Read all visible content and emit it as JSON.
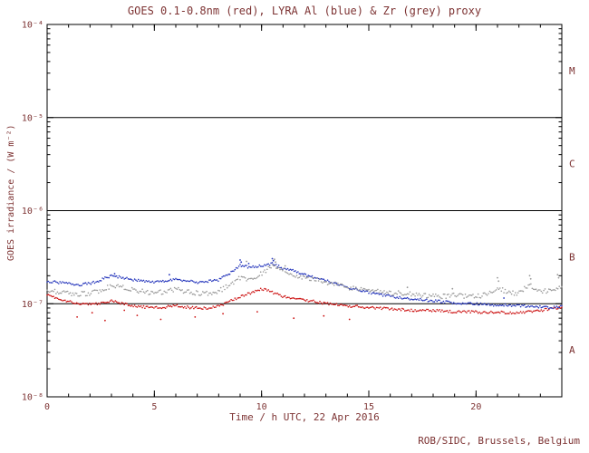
{
  "chart_data": {
    "type": "line",
    "render_style": "dense-dot-series",
    "title": "GOES 0.1-0.8nm (red), LYRA Al (blue) & Zr (grey) proxy",
    "xlabel": "Time / h UTC, 22 Apr 2016",
    "ylabel": "GOES irradiance / (W m⁻²)",
    "credit": "ROB/SIDC, Brussels, Belgium",
    "text_color": "#7d3333",
    "axis_color": "#000000",
    "grid": "flare-class-boundary-lines-only",
    "legend_position": "encoded-in-title",
    "x_range": [
      0,
      24
    ],
    "x_ticks_major": [
      0,
      5,
      10,
      15,
      20
    ],
    "x_minor_step": 1,
    "y_scale": "log",
    "y_range": [
      1e-08,
      0.0001
    ],
    "y_ticks": [
      {
        "value": 0.0001,
        "label": "10⁻⁴"
      },
      {
        "value": 1e-05,
        "label": "10⁻⁵"
      },
      {
        "value": 1e-06,
        "label": "10⁻⁶"
      },
      {
        "value": 1e-07,
        "label": "10⁻⁷"
      },
      {
        "value": 1e-08,
        "label": "10⁻⁸"
      }
    ],
    "class_lines": [
      1e-05,
      1e-06,
      1e-07
    ],
    "class_labels": [
      {
        "label": "M",
        "value": 3.2e-05
      },
      {
        "label": "C",
        "value": 3.2e-06
      },
      {
        "label": "B",
        "value": 3.2e-07
      },
      {
        "label": "A",
        "value": 3.2e-08
      }
    ],
    "x": [
      0,
      0.5,
      1,
      1.5,
      2,
      2.5,
      3,
      3.5,
      4,
      4.5,
      5,
      5.5,
      6,
      6.5,
      7,
      7.5,
      8,
      8.5,
      9,
      9.5,
      10,
      10.5,
      11,
      11.5,
      12,
      12.5,
      13,
      13.5,
      14,
      14.5,
      15,
      15.5,
      16,
      16.5,
      17,
      17.5,
      18,
      18.5,
      19,
      19.5,
      20,
      20.5,
      21,
      21.5,
      22,
      22.5,
      23,
      23.5,
      24
    ],
    "series": [
      {
        "name": "GOES 0.1-0.8nm",
        "color": "#cc1111",
        "jitter_log10": 0.028,
        "values": [
          1.25e-07,
          1.15e-07,
          1.05e-07,
          1e-07,
          9.8e-08,
          1e-07,
          1.07e-07,
          1e-07,
          9.5e-08,
          9.2e-08,
          9e-08,
          9.2e-08,
          9.6e-08,
          9.2e-08,
          9e-08,
          9e-08,
          9.5e-08,
          1.05e-07,
          1.2e-07,
          1.3e-07,
          1.45e-07,
          1.33e-07,
          1.2e-07,
          1.15e-07,
          1.1e-07,
          1.05e-07,
          1e-07,
          9.8e-08,
          9.5e-08,
          9.3e-08,
          9e-08,
          9e-08,
          8.8e-08,
          8.7e-08,
          8.5e-08,
          8.5e-08,
          8.5e-08,
          8.3e-08,
          8.2e-08,
          8.2e-08,
          8.2e-08,
          8e-08,
          8.2e-08,
          8e-08,
          8e-08,
          8.2e-08,
          8.5e-08,
          8.8e-08,
          9.2e-08
        ],
        "extra_points": [
          [
            1.4,
            7.2e-08
          ],
          [
            2.1,
            8e-08
          ],
          [
            2.7,
            6.6e-08
          ],
          [
            3.6,
            8.5e-08
          ],
          [
            4.2,
            7.5e-08
          ],
          [
            5.3,
            6.8e-08
          ],
          [
            6.9,
            7.2e-08
          ],
          [
            8.2,
            7.8e-08
          ],
          [
            9.8,
            8.2e-08
          ],
          [
            11.5,
            7e-08
          ],
          [
            12.9,
            7.4e-08
          ],
          [
            14.1,
            6.8e-08
          ]
        ]
      },
      {
        "name": "LYRA Al proxy",
        "color": "#2233bb",
        "jitter_log10": 0.026,
        "values": [
          1.75e-07,
          1.7e-07,
          1.65e-07,
          1.6e-07,
          1.65e-07,
          1.8e-07,
          2e-07,
          1.92e-07,
          1.8e-07,
          1.75e-07,
          1.7e-07,
          1.76e-07,
          1.82e-07,
          1.76e-07,
          1.7e-07,
          1.74e-07,
          1.8e-07,
          2.1e-07,
          2.6e-07,
          2.45e-07,
          2.55e-07,
          2.7e-07,
          2.4e-07,
          2.25e-07,
          2.05e-07,
          1.9e-07,
          1.78e-07,
          1.62e-07,
          1.5e-07,
          1.42e-07,
          1.32e-07,
          1.26e-07,
          1.2e-07,
          1.16e-07,
          1.12e-07,
          1.1e-07,
          1.07e-07,
          1.05e-07,
          1.02e-07,
          1e-07,
          1e-07,
          9.8e-08,
          9.7e-08,
          9.6e-08,
          9.5e-08,
          9.4e-08,
          9.3e-08,
          9e-08,
          9.5e-08
        ],
        "extra_points": [
          [
            9.0,
            2.95e-07
          ],
          [
            9.05,
            2.8e-07
          ],
          [
            9.4,
            2.7e-07
          ],
          [
            10.5,
            3.05e-07
          ],
          [
            10.55,
            2.9e-07
          ],
          [
            3.15,
            2.1e-07
          ],
          [
            5.7,
            2.05e-07
          ],
          [
            21.3,
            1.15e-07
          ]
        ]
      },
      {
        "name": "LYRA Zr proxy",
        "color": "#999999",
        "jitter_log10": 0.05,
        "values": [
          1.4e-07,
          1.35e-07,
          1.3e-07,
          1.27e-07,
          1.3e-07,
          1.4e-07,
          1.55e-07,
          1.5e-07,
          1.4e-07,
          1.35e-07,
          1.3e-07,
          1.35e-07,
          1.42e-07,
          1.36e-07,
          1.3e-07,
          1.3e-07,
          1.36e-07,
          1.6e-07,
          1.9e-07,
          1.8e-07,
          2.1e-07,
          2.6e-07,
          2.3e-07,
          2.05e-07,
          1.9e-07,
          1.8e-07,
          1.7e-07,
          1.6e-07,
          1.5e-07,
          1.45e-07,
          1.4e-07,
          1.36e-07,
          1.3e-07,
          1.3e-07,
          1.26e-07,
          1.24e-07,
          1.2e-07,
          1.2e-07,
          1.24e-07,
          1.2e-07,
          1.2e-07,
          1.25e-07,
          1.5e-07,
          1.3e-07,
          1.3e-07,
          1.6e-07,
          1.35e-07,
          1.4e-07,
          1.55e-07
        ],
        "extra_points": [
          [
            9.3,
            2.85e-07
          ],
          [
            10.6,
            3e-07
          ],
          [
            10.65,
            2.8e-07
          ],
          [
            11.1,
            2.55e-07
          ],
          [
            16.8,
            1.5e-07
          ],
          [
            18.9,
            1.45e-07
          ],
          [
            21.0,
            1.9e-07
          ],
          [
            21.05,
            1.75e-07
          ],
          [
            22.5,
            2e-07
          ],
          [
            22.55,
            1.85e-07
          ],
          [
            23.8,
            2.05e-07
          ],
          [
            23.85,
            1.9e-07
          ]
        ]
      }
    ]
  }
}
